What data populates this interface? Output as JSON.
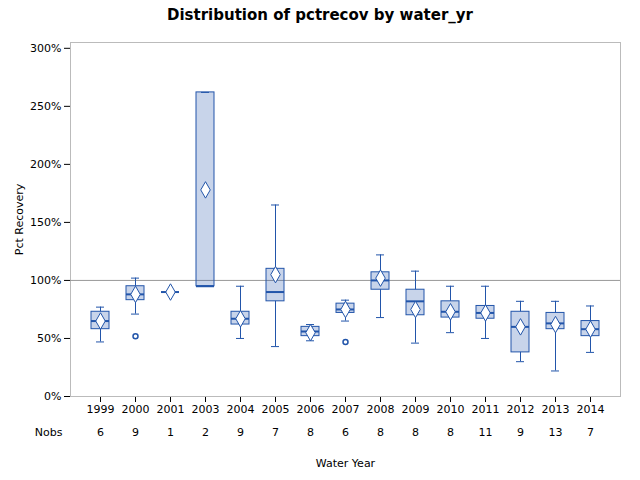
{
  "chart_data": {
    "type": "box",
    "title": "Distribution of pctrecov by water_yr",
    "xlabel": "Water Year",
    "ylabel": "Pct Recovery",
    "categories": [
      "1999",
      "2000",
      "2001",
      "2003",
      "2004",
      "2005",
      "2006",
      "2007",
      "2008",
      "2009",
      "2010",
      "2011",
      "2012",
      "2013",
      "2014"
    ],
    "boxes": [
      {
        "q1": 0.58,
        "median": 0.65,
        "q3": 0.73,
        "mean": 0.65,
        "whislo": 0.47,
        "whishi": 0.77,
        "fliers": []
      },
      {
        "q1": 0.83,
        "median": 0.88,
        "q3": 0.95,
        "mean": 0.88,
        "whislo": 0.71,
        "whishi": 1.02,
        "fliers": [
          0.52
        ]
      },
      {
        "q1": 0.9,
        "median": 0.9,
        "q3": 0.9,
        "mean": 0.9,
        "whislo": 0.9,
        "whishi": 0.9,
        "fliers": []
      },
      {
        "q1": 0.95,
        "median": 0.95,
        "q3": 2.62,
        "mean": 1.78,
        "whislo": 0.95,
        "whishi": 2.62,
        "fliers": []
      },
      {
        "q1": 0.62,
        "median": 0.67,
        "q3": 0.73,
        "mean": 0.67,
        "whislo": 0.5,
        "whishi": 0.95,
        "fliers": []
      },
      {
        "q1": 0.82,
        "median": 0.9,
        "q3": 1.1,
        "mean": 1.05,
        "whislo": 0.43,
        "whishi": 1.65,
        "fliers": []
      },
      {
        "q1": 0.52,
        "median": 0.56,
        "q3": 0.6,
        "mean": 0.55,
        "whislo": 0.48,
        "whishi": 0.62,
        "fliers": []
      },
      {
        "q1": 0.72,
        "median": 0.75,
        "q3": 0.8,
        "mean": 0.75,
        "whislo": 0.65,
        "whishi": 0.83,
        "fliers": [
          0.47
        ]
      },
      {
        "q1": 0.92,
        "median": 1.0,
        "q3": 1.07,
        "mean": 1.02,
        "whislo": 0.68,
        "whishi": 1.22,
        "fliers": []
      },
      {
        "q1": 0.7,
        "median": 0.82,
        "q3": 0.92,
        "mean": 0.75,
        "whislo": 0.46,
        "whishi": 1.08,
        "fliers": []
      },
      {
        "q1": 0.68,
        "median": 0.73,
        "q3": 0.82,
        "mean": 0.73,
        "whislo": 0.55,
        "whishi": 0.95,
        "fliers": []
      },
      {
        "q1": 0.67,
        "median": 0.72,
        "q3": 0.78,
        "mean": 0.72,
        "whislo": 0.5,
        "whishi": 0.95,
        "fliers": []
      },
      {
        "q1": 0.38,
        "median": 0.6,
        "q3": 0.73,
        "mean": 0.6,
        "whislo": 0.3,
        "whishi": 0.82,
        "fliers": []
      },
      {
        "q1": 0.58,
        "median": 0.63,
        "q3": 0.72,
        "mean": 0.62,
        "whislo": 0.22,
        "whishi": 0.82,
        "fliers": []
      },
      {
        "q1": 0.52,
        "median": 0.58,
        "q3": 0.65,
        "mean": 0.58,
        "whislo": 0.38,
        "whishi": 0.78,
        "fliers": []
      }
    ],
    "nobs_label": "Nobs",
    "nobs": [
      6,
      9,
      1,
      2,
      9,
      7,
      8,
      6,
      8,
      8,
      8,
      11,
      9,
      13,
      7
    ],
    "reference_line": 1.0,
    "color": "#2255aa",
    "ylim": [
      0.0,
      3.05
    ],
    "yticks": [
      {
        "value": 0.0,
        "label": "0%"
      },
      {
        "value": 0.5,
        "label": "50%"
      },
      {
        "value": 1.0,
        "label": "100%"
      },
      {
        "value": 1.5,
        "label": "150%"
      },
      {
        "value": 2.0,
        "label": "200%"
      },
      {
        "value": 2.5,
        "label": "250%"
      },
      {
        "value": 3.0,
        "label": "300%"
      }
    ],
    "grid": false
  }
}
